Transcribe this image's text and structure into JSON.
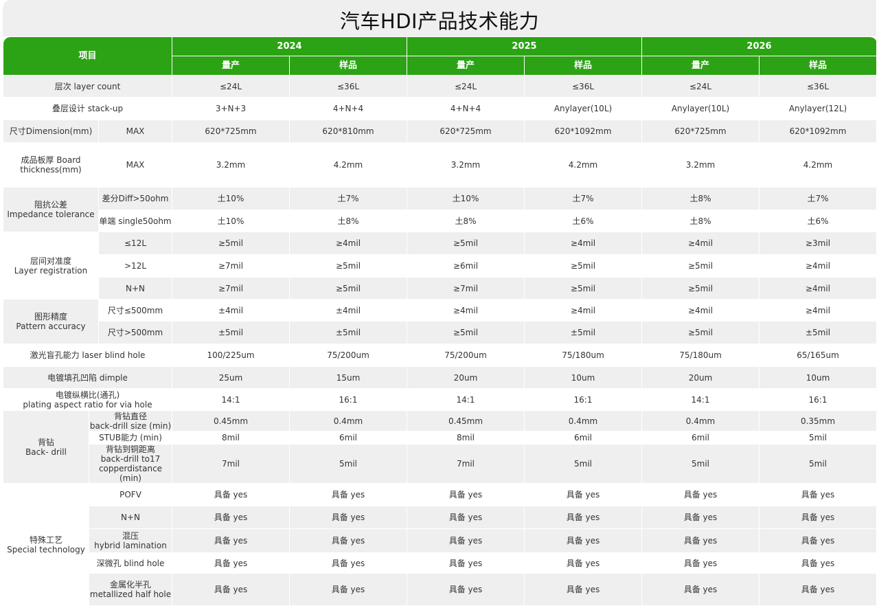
{
  "title": "汽车HDI产品技术能力",
  "header": {
    "item_label": "项目",
    "years": [
      "2024",
      "2025",
      "2026"
    ],
    "sub_labels": [
      "量产",
      "样品",
      "量产",
      "样品",
      "量产",
      "样品"
    ]
  },
  "colors": {
    "header_green": "#2ca314",
    "row_grey": "#efefef"
  },
  "sections": [
    {
      "label": "层次  layer count",
      "values": [
        "≤24L",
        "≤36L",
        "≤24L",
        "≤36L",
        "≤24L",
        "≤36L"
      ]
    },
    {
      "label": "叠层设计 stack-up",
      "values": [
        "3+N+3",
        "4+N+4",
        "4+N+4",
        "Anylayer(10L)",
        "Anylayer(10L)",
        "Anylayer(12L)"
      ]
    },
    {
      "label": "尺寸Dimension(mm)",
      "rows": [
        {
          "label": "MAX",
          "values": [
            "620*725mm",
            "620*810mm",
            "620*725mm",
            "620*1092mm",
            "620*725mm",
            "620*1092mm"
          ]
        }
      ]
    },
    {
      "label": "成品板厚 Board thickness(mm)",
      "rows": [
        {
          "label": "MAX",
          "values": [
            "3.2mm",
            "4.2mm",
            "3.2mm",
            "4.2mm",
            "3.2mm",
            "4.2mm"
          ]
        }
      ]
    },
    {
      "label": "阻抗公差\nImpedance tolerance",
      "rows": [
        {
          "label": "差分Diff>50ohm",
          "values": [
            "土10%",
            "土7%",
            "土10%",
            "土7%",
            "土8%",
            "土7%"
          ]
        },
        {
          "label": "单端 single50ohm",
          "values": [
            "土10%",
            "土8%",
            "土8%",
            "土6%",
            "土8%",
            "土6%"
          ]
        }
      ]
    },
    {
      "label": "层间对准度\nLayer registration",
      "rows": [
        {
          "label": "≤12L",
          "values": [
            "≥5mil",
            "≥4mil",
            "≥5mil",
            "≥4mil",
            "≥4mil",
            "≥3mil"
          ]
        },
        {
          "label": ">12L",
          "values": [
            "≥7mil",
            "≥5mil",
            "≥6mil",
            "≥5mil",
            "≥5mil",
            "≥4mil"
          ]
        },
        {
          "label": "N+N",
          "values": [
            "≥7mil",
            "≥5mil",
            "≥7mil",
            "≥5mil",
            "≥5mil",
            "≥4mil"
          ]
        }
      ]
    },
    {
      "label": "图形精度\nPattern accuracy",
      "rows": [
        {
          "label": "尺寸≤500mm",
          "values": [
            "±4mil",
            "±4mil",
            "≥4mil",
            "≥4mil",
            "≥4mil",
            "≥4mil"
          ]
        },
        {
          "label": "尺寸>500mm",
          "values": [
            "±5mil",
            "±5mil",
            "≥5mil",
            "±5mil",
            "≥5mil",
            "±5mil"
          ]
        }
      ]
    },
    {
      "label": "激光盲孔能力 laser blind hole",
      "values": [
        "100/225um",
        "75/200um",
        "75/200um",
        "75/180um",
        "75/180um",
        "65/165um"
      ]
    },
    {
      "label": "电镀填孔凹陷 dimple",
      "values": [
        "25um",
        "15um",
        "20um",
        "10um",
        "20um",
        "10um"
      ]
    },
    {
      "label": "电镀纵横比(通孔)\nplating aspect ratio for via hole",
      "values": [
        "14:1",
        "16:1",
        "14:1",
        "16:1",
        "14:1",
        "16:1"
      ]
    },
    {
      "label": "背钻\nBack- drill",
      "rows": [
        {
          "label": "背钻直径\nback-drill size (min)",
          "values": [
            "0.45mm",
            "0.4mm",
            "0.45mm",
            "0.4mm",
            "0.4mm",
            "0.35mm"
          ]
        },
        {
          "label": "STUB能力 (min)",
          "values": [
            "8mil",
            "6mil",
            "8mil",
            "6mil",
            "6mil",
            "5mil"
          ]
        },
        {
          "label": "背钻到铜距离\nback-drill to17\ncopperdistance (min)",
          "values": [
            "7mil",
            "5mil",
            "7mil",
            "5mil",
            "5mil",
            "5mil"
          ]
        }
      ]
    },
    {
      "label": "特殊工艺\nSpecial  technology",
      "rows": [
        {
          "label": "POFV",
          "values": [
            "具备 yes",
            "具备 yes",
            "具备 yes",
            "具备 yes",
            "具备 yes",
            "具备 yes"
          ]
        },
        {
          "label": "N+N",
          "values": [
            "具备 yes",
            "具备 yes",
            "具备 yes",
            "具备 yes",
            "具备 yes",
            "具备 yes"
          ]
        },
        {
          "label": "混压\nhybrid lamination",
          "values": [
            "具备 yes",
            "具备 yes",
            "具备 yes",
            "具备 yes",
            "具备 yes",
            "具备 yes"
          ]
        },
        {
          "label": "深微孔 blind hole",
          "values": [
            "具备 yes",
            "具备 yes",
            "具备 yes",
            "具备 yes",
            "具备 yes",
            "具备 yes"
          ]
        },
        {
          "label": "金属化半孔\nmetallized half hole",
          "values": [
            "具备 yes",
            "具备 yes",
            "具备 yes",
            "具备 yes",
            "具备 yes",
            "具备 yes"
          ]
        }
      ]
    }
  ]
}
